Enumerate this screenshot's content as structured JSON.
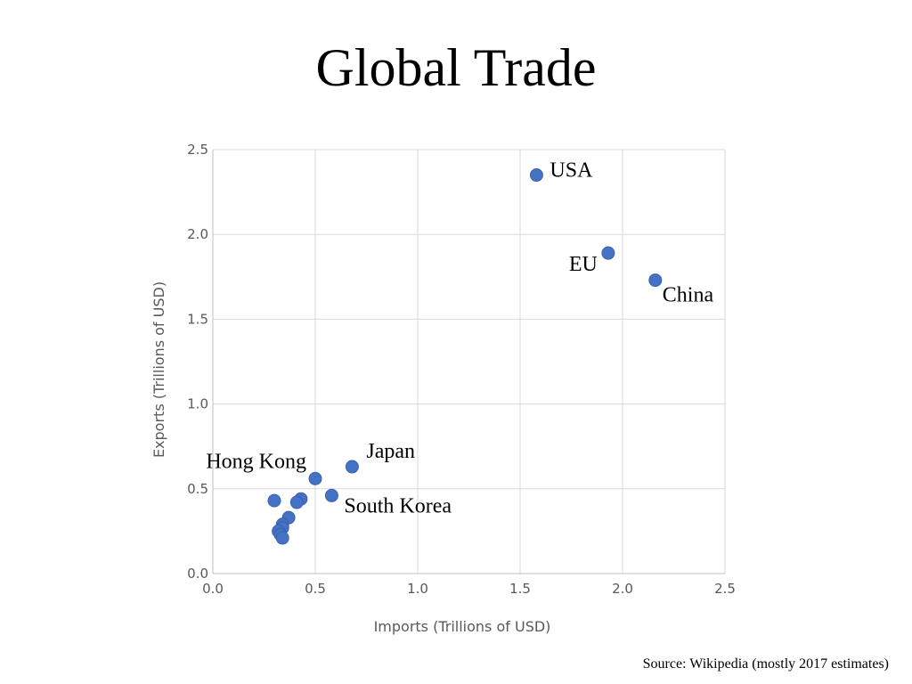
{
  "slide": {
    "title": "Global Trade",
    "source": "Source: Wikipedia (mostly 2017 estimates)"
  },
  "chart_data": {
    "type": "scatter",
    "xlabel": "Imports (Trillions of USD)",
    "ylabel": "Exports (Trillions of USD)",
    "xlim": [
      0,
      2.5
    ],
    "ylim": [
      0,
      2.5
    ],
    "xticks": [
      "0.0",
      "0.5",
      "1.0",
      "1.5",
      "2.0",
      "2.5"
    ],
    "yticks": [
      "0.0",
      "0.5",
      "1.0",
      "1.5",
      "2.0",
      "2.5"
    ],
    "grid": true,
    "marker_color": "#4472C4",
    "points": [
      {
        "x": 1.58,
        "y": 2.35,
        "label": "USA"
      },
      {
        "x": 1.93,
        "y": 1.89,
        "label": "EU"
      },
      {
        "x": 2.16,
        "y": 1.73,
        "label": "China"
      },
      {
        "x": 0.68,
        "y": 0.63,
        "label": "Japan"
      },
      {
        "x": 0.5,
        "y": 0.56,
        "label": "Hong Kong"
      },
      {
        "x": 0.58,
        "y": 0.46,
        "label": "South Korea"
      },
      {
        "x": 0.3,
        "y": 0.43
      },
      {
        "x": 0.43,
        "y": 0.44
      },
      {
        "x": 0.41,
        "y": 0.42
      },
      {
        "x": 0.37,
        "y": 0.33
      },
      {
        "x": 0.34,
        "y": 0.29
      },
      {
        "x": 0.34,
        "y": 0.27
      },
      {
        "x": 0.32,
        "y": 0.25
      },
      {
        "x": 0.33,
        "y": 0.23
      },
      {
        "x": 0.34,
        "y": 0.21
      }
    ]
  }
}
